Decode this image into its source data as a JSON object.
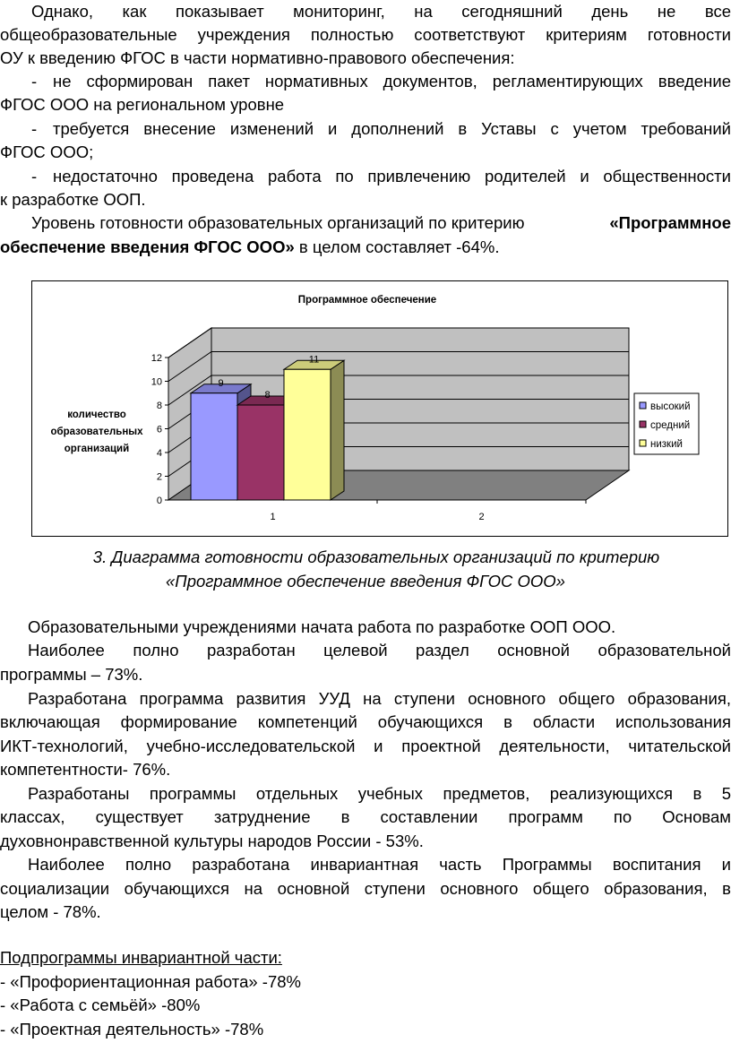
{
  "paragraph1": {
    "lines": [
      "Однако, как показывает мониторинг, на сегодняшний день не все",
      "общеобразовательные учреждения полностью соответствуют критериям готовности",
      "ОУ к введению ФГОС в части нормативно-правового обеспечения:"
    ]
  },
  "bullets1": [
    {
      "line1": "не сформирован пакет нормативных документов, регламентирующих введение",
      "line2": "ФГОС ООО на региональном уровне"
    },
    {
      "line1": "требуется внесение изменений и дополнений в Уставы с учетом требований",
      "line2": "ФГОС ООО;"
    },
    {
      "line1": "недостаточно проведена работа по привлечению родителей и общественности",
      "line2": "к разработке ООП."
    }
  ],
  "readiness": {
    "prefix": "Уровень готовности образовательных организаций по критерию",
    "bold1": "«Программное",
    "bold2": "обеспечение введения ФГОС ООО»",
    "suffix": " в целом составляет -64%."
  },
  "chart_data": {
    "type": "bar",
    "title": "Программное обеспечение",
    "ylabel": "количество образовательных организаций",
    "ylabel_lines": [
      "количество",
      "образовательных",
      "организаций"
    ],
    "categories": [
      "1",
      "2"
    ],
    "ylim": [
      0,
      12
    ],
    "yticks": [
      "0",
      "2",
      "4",
      "6",
      "8",
      "10",
      "12"
    ],
    "series": [
      {
        "name": "высокий",
        "values": [
          9,
          null
        ],
        "color": "#9999FF"
      },
      {
        "name": "средний",
        "values": [
          8,
          null
        ],
        "color": "#993366"
      },
      {
        "name": "низкий",
        "values": [
          11,
          null
        ],
        "color": "#FFFF99"
      }
    ],
    "grid": true,
    "legend": "right"
  },
  "caption": {
    "line1": "3. Диаграмма готовности образовательных организаций по критерию",
    "line2": "«Программное обеспечение введения ФГОС ООО»"
  },
  "body": [
    {
      "text": "Образовательными учреждениями начата работа по разработке ООП ООО."
    },
    {
      "line1": "Наиболее полно  разработан целевой раздел основной образовательной",
      "line2": "программы – 73%."
    },
    {
      "line1": "Разработана программа развития УУД на ступени основного общего образования,",
      "line2": "включающая формирование компетенций обучающихся в области использования",
      "line3": "ИКТ-технологий, учебно-исследовательской и проектной деятельности, читательской",
      "line4": "компетентности- 76%."
    },
    {
      "line1": "Разработаны программы отдельных учебных предметов, реализующихся в 5",
      "line2": "классах, существует затруднение в составлении программ по Основам",
      "line3": "духовнонравственной культуры народов России - 53%."
    },
    {
      "line1": "Наиболее полно разработана инвариантная часть Программы воспитания и",
      "line2": "социализации обучающихся на основной ступени основного общего образования, в",
      "line3": "целом - 78%."
    }
  ],
  "subprograms": {
    "heading": "Подпрограммы инвариантной части:",
    "items": [
      "-  «Профориентационная работа» -78%",
      "-  «Работа с семьёй» -80%",
      "-  «Проектная деятельность» -78%"
    ]
  }
}
